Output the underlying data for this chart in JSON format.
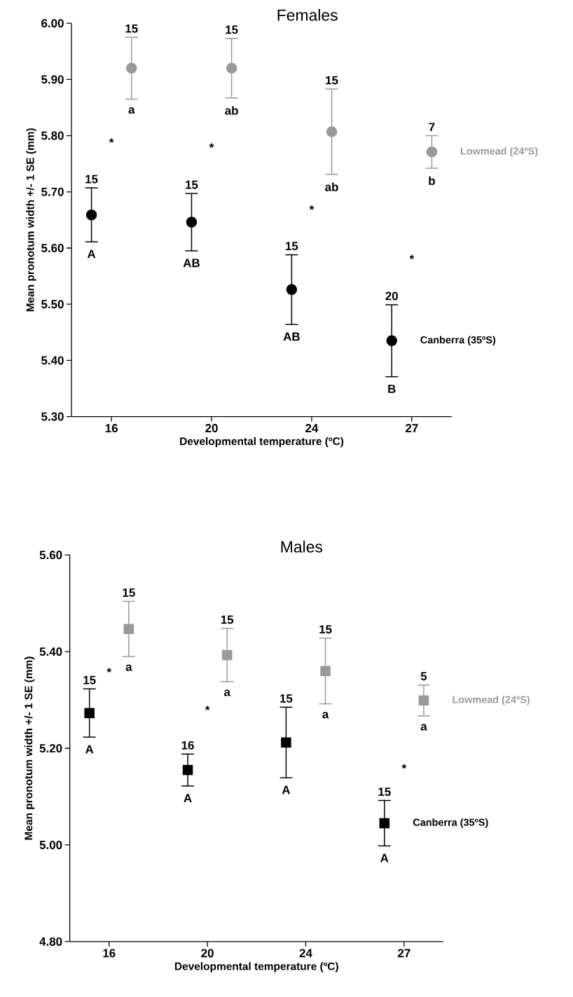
{
  "chart_data": [
    {
      "type": "scatter",
      "title": "Females",
      "xlabel": "Developmental temperature (ºC)",
      "ylabel": "Mean pronotum width +/- 1 SE (mm)",
      "marker": "circle",
      "categories": [
        "16",
        "20",
        "24",
        "27"
      ],
      "ylim": [
        5.3,
        6.0
      ],
      "yticks": [
        {
          "value": 5.3,
          "label": "5.30"
        },
        {
          "value": 5.4,
          "label": "5.40"
        },
        {
          "value": 5.5,
          "label": "5.50"
        },
        {
          "value": 5.6,
          "label": "5.60"
        },
        {
          "value": 5.7,
          "label": "5.70"
        },
        {
          "value": 5.8,
          "label": "5.80"
        },
        {
          "value": 5.9,
          "label": "5.90"
        },
        {
          "value": 6.0,
          "label": "6.00"
        }
      ],
      "series": [
        {
          "name": "Lowmead (24ºS)",
          "color": "#999999",
          "values": [
            5.92,
            5.92,
            5.807,
            5.771
          ],
          "errors": [
            0.055,
            0.053,
            0.076,
            0.029
          ]
        },
        {
          "name": "Canberra (35ºS)",
          "color": "#000000",
          "values": [
            5.659,
            5.646,
            5.526,
            5.435
          ],
          "errors": [
            0.048,
            0.051,
            0.062,
            0.064
          ]
        }
      ],
      "annotations": [
        "15",
        "a",
        "15",
        "ab",
        "15",
        "ab",
        "7",
        "b",
        "15",
        "A",
        "15",
        "AB",
        "15",
        "AB",
        "20",
        "B",
        "*",
        "*",
        "*",
        "*"
      ]
    },
    {
      "type": "scatter",
      "title": "Males",
      "xlabel": "Developmental temperature (ºC)",
      "ylabel": "Mean pronotum width +/- 1 SE (mm)",
      "marker": "square",
      "categories": [
        "16",
        "20",
        "24",
        "27"
      ],
      "ylim": [
        4.8,
        5.6
      ],
      "yticks": [
        {
          "value": 4.8,
          "label": "4.80"
        },
        {
          "value": 5.0,
          "label": "5.00"
        },
        {
          "value": 5.2,
          "label": "5.20"
        },
        {
          "value": 5.4,
          "label": "5.40"
        },
        {
          "value": 5.6,
          "label": "5.60"
        }
      ],
      "series": [
        {
          "name": "Lowmead (24ºS)",
          "color": "#999999",
          "values": [
            5.447,
            5.393,
            5.36,
            5.299
          ],
          "errors": [
            0.057,
            0.055,
            0.068,
            0.032
          ]
        },
        {
          "name": "Canberra (35ºS)",
          "color": "#000000",
          "values": [
            5.273,
            5.155,
            5.212,
            5.045
          ],
          "errors": [
            0.05,
            0.033,
            0.073,
            0.047
          ]
        }
      ],
      "annotations": [
        "15",
        "a",
        "15",
        "a",
        "15",
        "a",
        "5",
        "a",
        "15",
        "A",
        "16",
        "A",
        "15",
        "A",
        "15",
        "A",
        "*",
        "*",
        "*"
      ]
    }
  ]
}
